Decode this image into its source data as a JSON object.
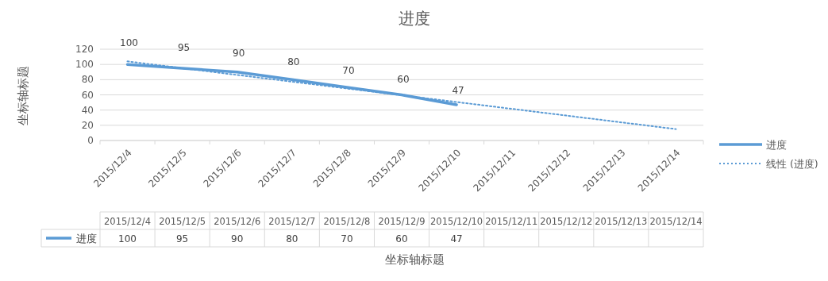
{
  "chart_data": {
    "type": "line",
    "title": "进度",
    "xlabel": "坐标轴标题",
    "ylabel": "坐标轴标题",
    "categories": [
      "2015/12/4",
      "2015/12/5",
      "2015/12/6",
      "2015/12/7",
      "2015/12/8",
      "2015/12/9",
      "2015/12/10",
      "2015/12/11",
      "2015/12/12",
      "2015/12/13",
      "2015/12/14"
    ],
    "series": [
      {
        "name": "进度",
        "color": "#5b9bd5",
        "values": [
          100,
          95,
          90,
          80,
          70,
          60,
          47,
          null,
          null,
          null,
          null
        ],
        "value_labels": [
          "100",
          "95",
          "90",
          "80",
          "70",
          "60",
          "47",
          null,
          null,
          null,
          null
        ]
      },
      {
        "name": "线性 (进度)",
        "color": "#5b9bd5",
        "line_style": "dotted",
        "x": [
          "2015/12/4",
          "2015/12/14"
        ],
        "values": [
          104,
          15
        ]
      }
    ],
    "ylim": [
      0,
      120
    ],
    "yticks": [
      0,
      20,
      40,
      60,
      80,
      100,
      120
    ],
    "grid": "y",
    "legend": "right",
    "line_style": "solid"
  }
}
